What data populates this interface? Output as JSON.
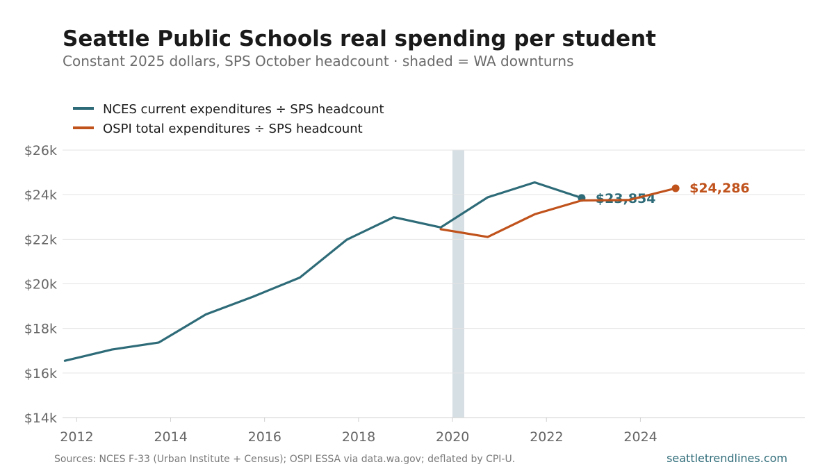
{
  "title": "Seattle Public Schools real spending per student",
  "subtitle": "Constant 2025 dollars, SPS October headcount · shaded = WA downturns",
  "source": "Sources: NCES F-33 (Urban Institute + Census); OSPI ESSA via data.wa.gov; deflated by CPI-U.",
  "brand": "seattletrendlines.com",
  "colors": {
    "nces": "#2e6b78",
    "ospi": "#c0521c",
    "recession": "#d6dfe4",
    "brand": "#2e6b78"
  },
  "chart_data": {
    "type": "line",
    "title": "Seattle Public Schools real spending per student",
    "subtitle": "Constant 2025 dollars, SPS October headcount · shaded = WA downturns",
    "xlabel": "",
    "ylabel": "",
    "x_ticks": [
      2012,
      2014,
      2016,
      2018,
      2020,
      2022,
      2024
    ],
    "y_ticks": [
      14000,
      16000,
      18000,
      20000,
      22000,
      24000,
      26000
    ],
    "y_tick_labels": [
      "$14k",
      "$16k",
      "$18k",
      "$20k",
      "$22k",
      "$24k",
      "$26k"
    ],
    "xlim": [
      2011.7,
      2027.5
    ],
    "ylim": [
      14000,
      26000
    ],
    "grid": "horizontal",
    "legend_position": "top-left",
    "shaded_ranges": [
      [
        2020.0,
        2020.25
      ]
    ],
    "series": [
      {
        "name": "NCES current expenditures ÷ SPS headcount",
        "color": "#2e6b78",
        "x": [
          2011.75,
          2012.75,
          2013.75,
          2014.75,
          2015.75,
          2016.75,
          2017.75,
          2018.75,
          2019.75,
          2020.75,
          2021.75,
          2022.75
        ],
        "y": [
          16550,
          17050,
          17370,
          18630,
          19420,
          20280,
          21980,
          22990,
          22530,
          23880,
          24550,
          23854
        ],
        "end_label": "$23,854"
      },
      {
        "name": "OSPI total expenditures ÷ SPS headcount",
        "color": "#c0521c",
        "x": [
          2019.75,
          2020.75,
          2021.75,
          2022.75,
          2023.75,
          2024.75
        ],
        "y": [
          22450,
          22100,
          23120,
          23740,
          23760,
          24286
        ],
        "end_label": "$24,286"
      }
    ]
  }
}
